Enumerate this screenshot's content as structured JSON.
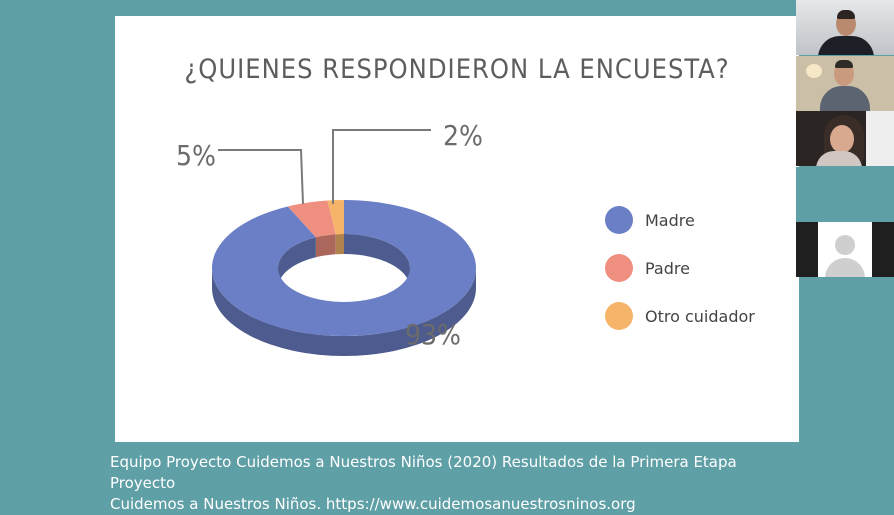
{
  "slide": {
    "title": "¿QUIENES RESPONDIERON LA ENCUESTA?"
  },
  "chart_data": {
    "type": "pie",
    "title": "¿QUIENES RESPONDIERON LA ENCUESTA?",
    "categories": [
      "Madre",
      "Padre",
      "Otro cuidador"
    ],
    "values": [
      93,
      5,
      2
    ],
    "labels": [
      "93%",
      "5%",
      "2%"
    ],
    "colors": [
      "#6b7fc6",
      "#ef8f80",
      "#f5b469"
    ],
    "legend_placement": "right"
  },
  "caption": {
    "line1": "Equipo Proyecto Cuidemos a Nuestros Niños (2020) Resultados de la Primera Etapa Proyecto",
    "line2": "Cuidemos a Nuestros Niños. https://www.cuidemosanuestrosninos.org"
  }
}
